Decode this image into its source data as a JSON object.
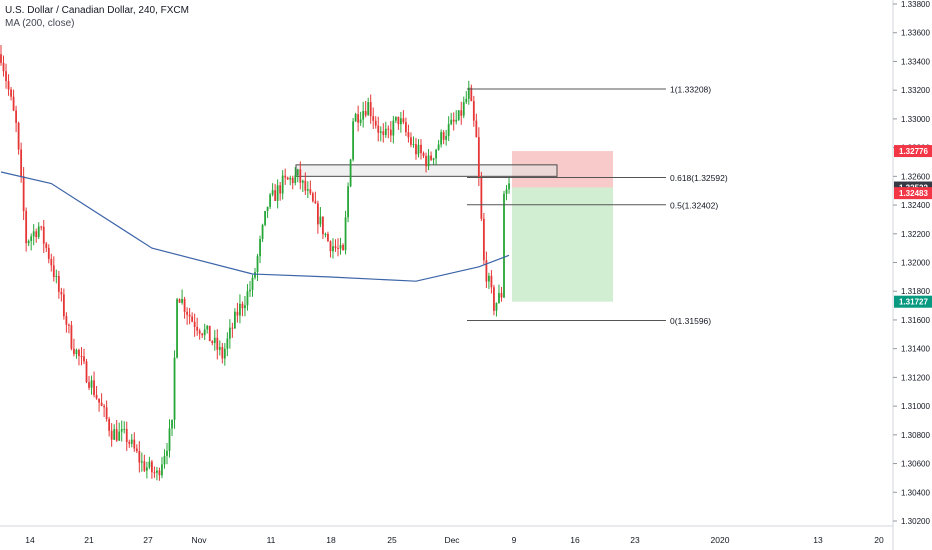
{
  "header": {
    "title": "U.S. Dollar / Canadian Dollar, 240, FXCM",
    "indicator": "MA (200, close)"
  },
  "colors": {
    "up": "#26a637",
    "down": "#e63535",
    "ma": "#3c64a8",
    "stop_zone": "#f7c1c1",
    "target_zone": "#cdeccd",
    "badge_red": "#f23645",
    "badge_dark": "#363a45",
    "badge_green": "#089981"
  },
  "chart_data": {
    "type": "candlestick",
    "instrument": "USDCAD",
    "timeframe": "240",
    "ylim": [
      1.3015,
      1.339
    ],
    "y_ticks": [
      "1.33800",
      "1.33600",
      "1.33400",
      "1.33200",
      "1.33000",
      "1.32800",
      "1.32600",
      "1.32400",
      "1.32200",
      "1.32000",
      "1.31800",
      "1.31600",
      "1.31400",
      "1.31200",
      "1.31000",
      "1.30800",
      "1.30600",
      "1.30400",
      "1.30200"
    ],
    "x_ticks": [
      "14",
      "21",
      "27",
      "Nov",
      "11",
      "18",
      "25",
      "Dec",
      "9",
      "16",
      "23",
      "2020",
      "13",
      "20"
    ],
    "close_path": [
      {
        "bar": 0,
        "price": 1.3345
      },
      {
        "bar": 6,
        "price": 1.3295
      },
      {
        "bar": 10,
        "price": 1.3215
      },
      {
        "bar": 15,
        "price": 1.3225
      },
      {
        "bar": 20,
        "price": 1.32
      },
      {
        "bar": 28,
        "price": 1.3145
      },
      {
        "bar": 36,
        "price": 1.3115
      },
      {
        "bar": 44,
        "price": 1.3082
      },
      {
        "bar": 50,
        "price": 1.3078
      },
      {
        "bar": 56,
        "price": 1.306
      },
      {
        "bar": 62,
        "price": 1.3052
      },
      {
        "bar": 68,
        "price": 1.3085
      },
      {
        "bar": 70,
        "price": 1.318
      },
      {
        "bar": 76,
        "price": 1.316
      },
      {
        "bar": 82,
        "price": 1.315
      },
      {
        "bar": 88,
        "price": 1.3135
      },
      {
        "bar": 94,
        "price": 1.3165
      },
      {
        "bar": 100,
        "price": 1.3185
      },
      {
        "bar": 106,
        "price": 1.324
      },
      {
        "bar": 112,
        "price": 1.3255
      },
      {
        "bar": 118,
        "price": 1.326
      },
      {
        "bar": 124,
        "price": 1.324
      },
      {
        "bar": 130,
        "price": 1.3215
      },
      {
        "bar": 136,
        "price": 1.3205
      },
      {
        "bar": 140,
        "price": 1.33
      },
      {
        "bar": 146,
        "price": 1.331
      },
      {
        "bar": 152,
        "price": 1.3285
      },
      {
        "bar": 158,
        "price": 1.33
      },
      {
        "bar": 164,
        "price": 1.328
      },
      {
        "bar": 170,
        "price": 1.327
      },
      {
        "bar": 176,
        "price": 1.329
      },
      {
        "bar": 182,
        "price": 1.33
      },
      {
        "bar": 186,
        "price": 1.3318
      },
      {
        "bar": 189,
        "price": 1.3285
      },
      {
        "bar": 192,
        "price": 1.32
      },
      {
        "bar": 196,
        "price": 1.317
      },
      {
        "bar": 199,
        "price": 1.3178
      },
      {
        "bar": 200,
        "price": 1.325
      },
      {
        "bar": 202,
        "price": 1.3255
      }
    ],
    "ma_points": [
      {
        "bar": 0,
        "price": 1.3263
      },
      {
        "bar": 20,
        "price": 1.3255
      },
      {
        "bar": 60,
        "price": 1.321
      },
      {
        "bar": 100,
        "price": 1.3192
      },
      {
        "bar": 130,
        "price": 1.319
      },
      {
        "bar": 165,
        "price": 1.3187
      },
      {
        "bar": 190,
        "price": 1.3197
      },
      {
        "bar": 202,
        "price": 1.3205
      }
    ],
    "fib_levels": [
      {
        "ratio": "1",
        "price": 1.33208,
        "label": "1(1.33208)"
      },
      {
        "ratio": "0.618",
        "price": 1.32592,
        "label": "0.618(1.32592)"
      },
      {
        "ratio": "0.5",
        "price": 1.32402,
        "label": "0.5(1.32402)"
      },
      {
        "ratio": "0",
        "price": 1.31596,
        "label": "0(1.31596)"
      }
    ],
    "resistance_zone": {
      "top": 1.3268,
      "bottom": 1.326
    },
    "position": {
      "stop": 1.32776,
      "entry": 1.32522,
      "target": 1.31727
    },
    "price_badges": [
      {
        "value": "1.32776",
        "price": 1.32776,
        "color": "badge_red"
      },
      {
        "value": "1.32522",
        "price": 1.32522,
        "color": "badge_dark"
      },
      {
        "value": "1.32483",
        "price": 1.32483,
        "color": "badge_red"
      },
      {
        "value": "1.31727",
        "price": 1.31727,
        "color": "badge_green"
      }
    ]
  }
}
